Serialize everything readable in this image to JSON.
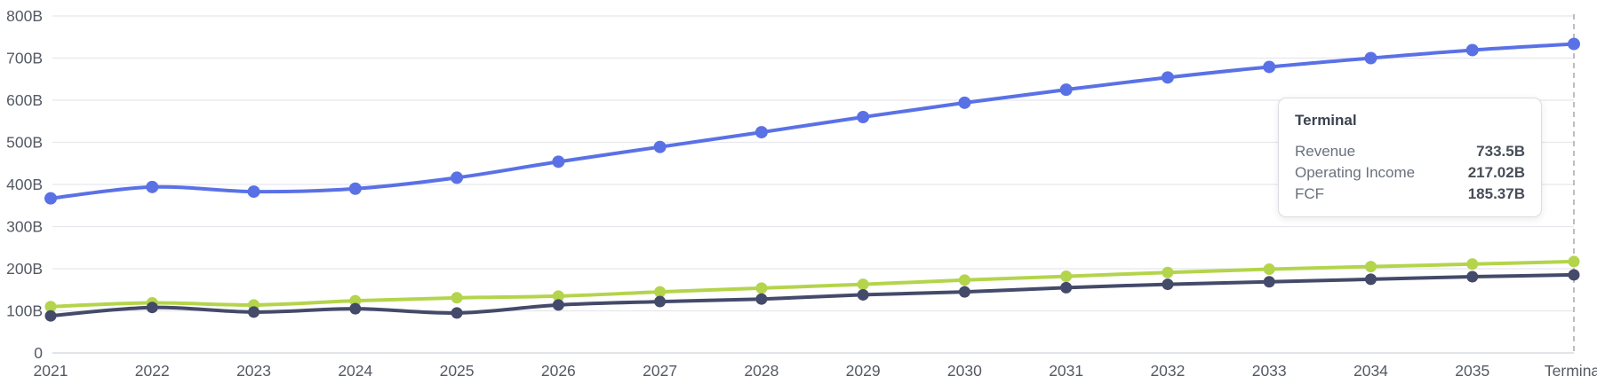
{
  "chart_data": {
    "type": "line",
    "title": "",
    "xlabel": "",
    "ylabel": "",
    "x_categories": [
      "2021",
      "2022",
      "2023",
      "2024",
      "2025",
      "2026",
      "2027",
      "2028",
      "2029",
      "2030",
      "2031",
      "2032",
      "2033",
      "2034",
      "2035",
      "Terminal"
    ],
    "y_ticks": [
      {
        "value": 0,
        "label": "0"
      },
      {
        "value": 100,
        "label": "100B"
      },
      {
        "value": 200,
        "label": "200B"
      },
      {
        "value": 300,
        "label": "300B"
      },
      {
        "value": 400,
        "label": "400B"
      },
      {
        "value": 500,
        "label": "500B"
      },
      {
        "value": 600,
        "label": "600B"
      },
      {
        "value": 700,
        "label": "700B"
      },
      {
        "value": 800,
        "label": "800B"
      }
    ],
    "ylim": [
      0,
      800
    ],
    "grid": "horizontal",
    "legend_position": "none",
    "hovered_category": "Terminal",
    "series": [
      {
        "name": "Revenue",
        "color": "#5a71e6",
        "marker_radius": 7,
        "values": [
          367,
          394,
          383,
          390,
          416,
          454,
          489,
          524,
          560,
          594,
          625,
          654,
          679,
          700,
          719,
          733.5
        ]
      },
      {
        "name": "Operating Income",
        "color": "#b4d44b",
        "marker_radius": 6.5,
        "values": [
          110,
          119,
          114,
          124,
          131,
          135,
          145,
          154,
          163,
          173,
          182,
          191,
          199,
          205,
          211,
          217.02
        ]
      },
      {
        "name": "FCF",
        "color": "#444a69",
        "marker_radius": 6.5,
        "values": [
          88,
          108,
          97,
          105,
          95,
          114,
          122,
          128,
          138,
          145,
          155,
          163,
          169,
          175,
          181,
          185.37
        ]
      }
    ]
  },
  "tooltip": {
    "title": "Terminal",
    "rows": [
      {
        "label": "Revenue",
        "value": "733.5B"
      },
      {
        "label": "Operating Income",
        "value": "217.02B"
      },
      {
        "label": "FCF",
        "value": "185.37B"
      }
    ]
  },
  "colors": {
    "background": "#ffffff",
    "gridline": "#e7e7ed",
    "axis_line": "#d9dbe0",
    "axis_text": "#545a64",
    "crosshair": "#abaeb6"
  }
}
